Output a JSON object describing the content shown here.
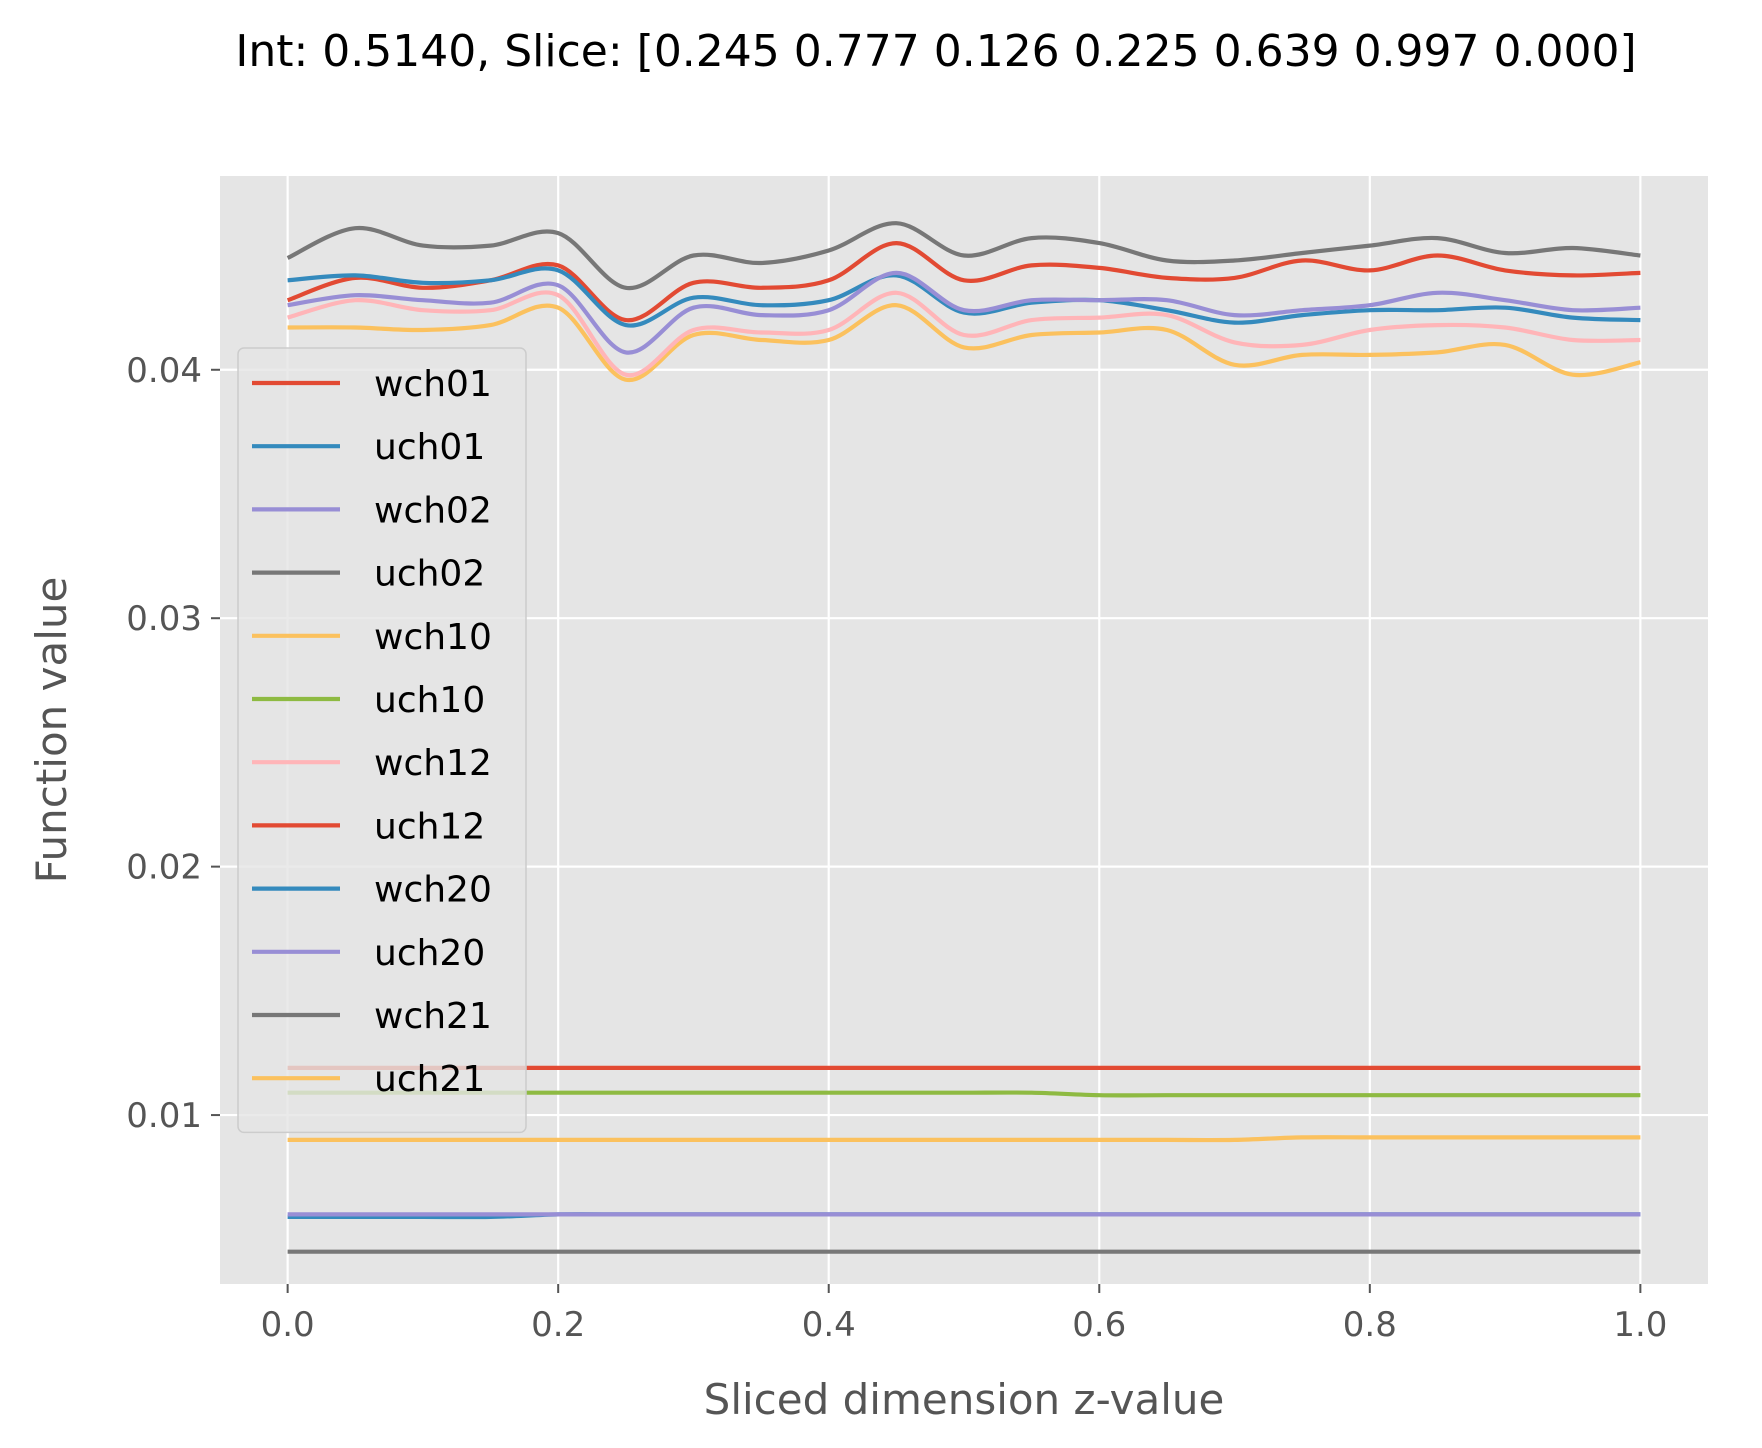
{
  "chart_data": {
    "type": "line",
    "title": "Int: 0.5140, Slice: [0.245 0.777 0.126 0.225 0.639 0.997 0.000]",
    "xlabel": "Sliced dimension z-value",
    "ylabel": "Function value",
    "xlim": [
      -0.05,
      1.05
    ],
    "ylim": [
      0.0032,
      0.0478
    ],
    "xticks": [
      0.0,
      0.2,
      0.4,
      0.6,
      0.8,
      1.0
    ],
    "xtick_labels": [
      "0.0",
      "0.2",
      "0.4",
      "0.6",
      "0.8",
      "1.0"
    ],
    "yticks": [
      0.01,
      0.02,
      0.03,
      0.04
    ],
    "ytick_labels": [
      "0.01",
      "0.02",
      "0.03",
      "0.04"
    ],
    "grid": true,
    "legend_position": "center-left",
    "x": [
      0.0,
      0.05,
      0.1,
      0.15,
      0.2,
      0.25,
      0.3,
      0.35,
      0.4,
      0.45,
      0.5,
      0.55,
      0.6,
      0.65,
      0.7,
      0.75,
      0.8,
      0.85,
      0.9,
      0.95,
      1.0
    ],
    "series": [
      {
        "name": "wch01",
        "color": "#E24A33",
        "values": [
          0.0428,
          0.0437,
          0.0433,
          0.0436,
          0.0442,
          0.042,
          0.0435,
          0.0433,
          0.0436,
          0.0451,
          0.0436,
          0.0442,
          0.0441,
          0.0437,
          0.0437,
          0.0444,
          0.044,
          0.0446,
          0.044,
          0.0438,
          0.0439
        ]
      },
      {
        "name": "uch01",
        "color": "#348ABD",
        "values": [
          0.0436,
          0.0438,
          0.0435,
          0.0436,
          0.044,
          0.0418,
          0.0429,
          0.0426,
          0.0428,
          0.0438,
          0.0423,
          0.0427,
          0.0428,
          0.0424,
          0.0419,
          0.0422,
          0.0424,
          0.0424,
          0.0425,
          0.0421,
          0.042
        ]
      },
      {
        "name": "wch02",
        "color": "#988ED5",
        "values": [
          0.0426,
          0.043,
          0.0428,
          0.0427,
          0.0434,
          0.0407,
          0.0425,
          0.0422,
          0.0424,
          0.0439,
          0.0424,
          0.0428,
          0.0428,
          0.0428,
          0.0422,
          0.0424,
          0.0426,
          0.0431,
          0.0428,
          0.0424,
          0.0425
        ]
      },
      {
        "name": "uch02",
        "color": "#777777",
        "values": [
          0.0445,
          0.0457,
          0.045,
          0.045,
          0.0455,
          0.0433,
          0.0446,
          0.0443,
          0.0448,
          0.0459,
          0.0446,
          0.0453,
          0.0451,
          0.0444,
          0.0444,
          0.0447,
          0.045,
          0.0453,
          0.0447,
          0.0449,
          0.0446
        ]
      },
      {
        "name": "wch10",
        "color": "#FBC15E",
        "values": [
          0.0417,
          0.0417,
          0.0416,
          0.0418,
          0.0425,
          0.0396,
          0.0414,
          0.0412,
          0.0412,
          0.0426,
          0.0409,
          0.0414,
          0.0415,
          0.0416,
          0.0402,
          0.0406,
          0.0406,
          0.0407,
          0.041,
          0.0398,
          0.0403
        ]
      },
      {
        "name": "uch10",
        "color": "#8EBA42",
        "values": [
          0.0109,
          0.0109,
          0.0109,
          0.0109,
          0.0109,
          0.0109,
          0.0109,
          0.0109,
          0.0109,
          0.0109,
          0.0109,
          0.0109,
          0.0108,
          0.0108,
          0.0108,
          0.0108,
          0.0108,
          0.0108,
          0.0108,
          0.0108,
          0.0108
        ]
      },
      {
        "name": "wch12",
        "color": "#FFB5B8",
        "values": [
          0.0421,
          0.0428,
          0.0424,
          0.0424,
          0.043,
          0.0398,
          0.0416,
          0.0415,
          0.0416,
          0.0431,
          0.0414,
          0.042,
          0.0421,
          0.0422,
          0.0411,
          0.041,
          0.0416,
          0.0418,
          0.0417,
          0.0412,
          0.0412
        ]
      },
      {
        "name": "uch12",
        "color": "#E24A33",
        "values": [
          0.0119,
          0.0119,
          0.0119,
          0.0119,
          0.0119,
          0.0119,
          0.0119,
          0.0119,
          0.0119,
          0.0119,
          0.0119,
          0.0119,
          0.0119,
          0.0119,
          0.0119,
          0.0119,
          0.0119,
          0.0119,
          0.0119,
          0.0119,
          0.0119
        ]
      },
      {
        "name": "wch20",
        "color": "#348ABD",
        "values": [
          0.0059,
          0.0059,
          0.0059,
          0.0059,
          0.006,
          0.006,
          0.006,
          0.006,
          0.006,
          0.006,
          0.006,
          0.006,
          0.006,
          0.006,
          0.006,
          0.006,
          0.006,
          0.006,
          0.006,
          0.006,
          0.006
        ]
      },
      {
        "name": "uch20",
        "color": "#988ED5",
        "values": [
          0.006,
          0.006,
          0.006,
          0.006,
          0.006,
          0.006,
          0.006,
          0.006,
          0.006,
          0.006,
          0.006,
          0.006,
          0.006,
          0.006,
          0.006,
          0.006,
          0.006,
          0.006,
          0.006,
          0.006,
          0.006
        ]
      },
      {
        "name": "wch21",
        "color": "#777777",
        "values": [
          0.0045,
          0.0045,
          0.0045,
          0.0045,
          0.0045,
          0.0045,
          0.0045,
          0.0045,
          0.0045,
          0.0045,
          0.0045,
          0.0045,
          0.0045,
          0.0045,
          0.0045,
          0.0045,
          0.0045,
          0.0045,
          0.0045,
          0.0045,
          0.0045
        ]
      },
      {
        "name": "uch21",
        "color": "#FBC15E",
        "values": [
          0.009,
          0.009,
          0.009,
          0.009,
          0.009,
          0.009,
          0.009,
          0.009,
          0.009,
          0.009,
          0.009,
          0.009,
          0.009,
          0.009,
          0.009,
          0.0091,
          0.0091,
          0.0091,
          0.0091,
          0.0091,
          0.0091
        ]
      }
    ]
  }
}
